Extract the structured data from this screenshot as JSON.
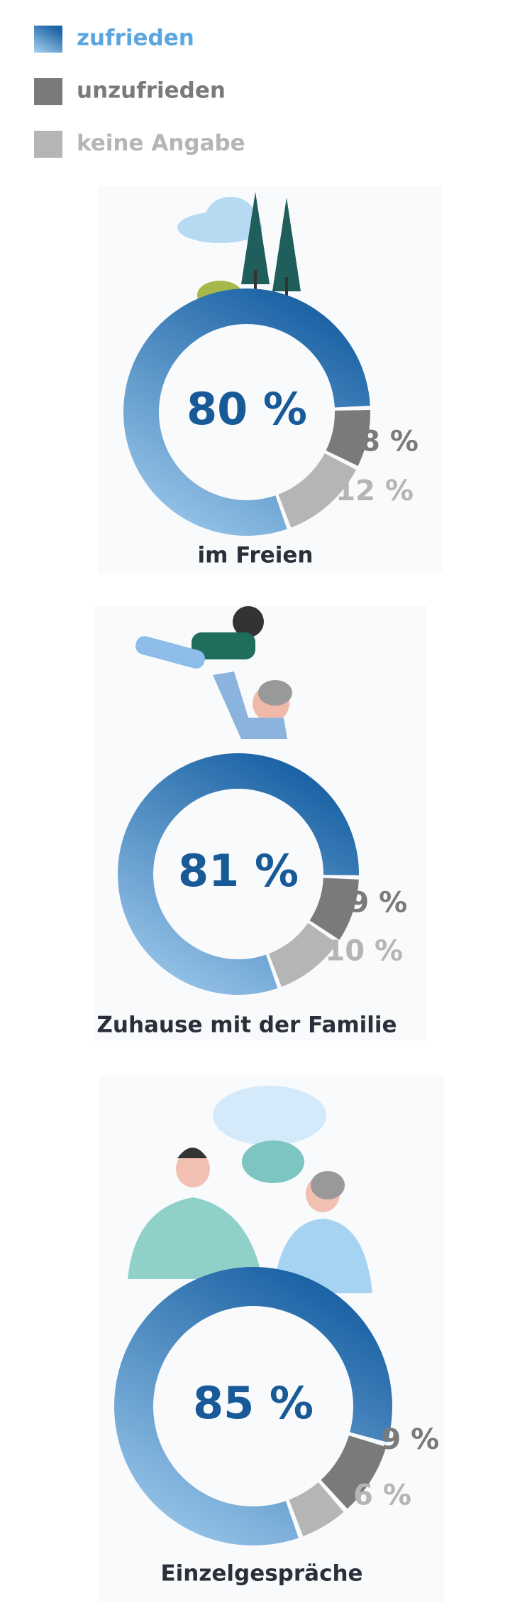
{
  "legend": {
    "items": [
      {
        "name": "zufrieden",
        "color": "#1d64a6"
      },
      {
        "name": "unzufrieden",
        "color": "#7a7a7a"
      },
      {
        "name": "keine Angabe",
        "color": "#b5b5b5"
      }
    ]
  },
  "chart_data": [
    {
      "type": "donut",
      "title": "im Freien",
      "values": [
        80,
        8,
        12
      ],
      "value_labels": [
        "80 %",
        "8 %",
        "12 %"
      ]
    },
    {
      "type": "donut",
      "title": "Zuhause mit der Familie",
      "values": [
        81,
        9,
        10
      ],
      "value_labels": [
        "81 %",
        "9 %",
        "10 %"
      ]
    },
    {
      "type": "donut",
      "title": "Einzelgespräche",
      "values": [
        85,
        9,
        6
      ],
      "value_labels": [
        "85 %",
        "9 %",
        "6 %"
      ]
    }
  ]
}
